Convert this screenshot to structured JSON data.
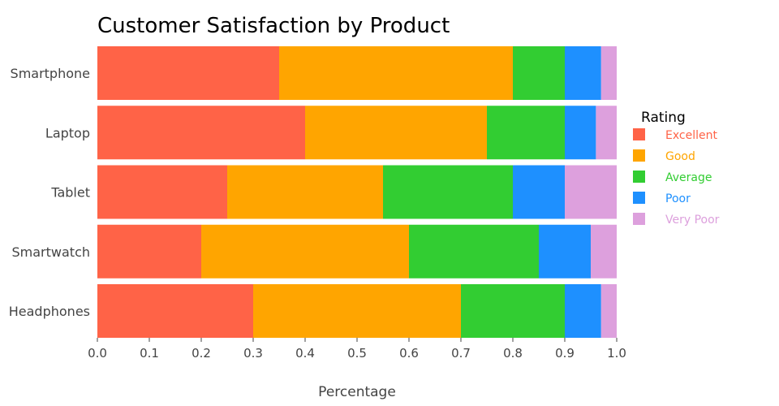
{
  "chart_data": {
    "type": "bar",
    "orientation": "horizontal",
    "stacked": true,
    "title": "Customer Satisfaction by Product",
    "xlabel": "Percentage",
    "ylabel": "",
    "xlim": [
      0,
      1
    ],
    "xticks": [
      "0.0",
      "0.1",
      "0.2",
      "0.3",
      "0.4",
      "0.5",
      "0.6",
      "0.7",
      "0.8",
      "0.9",
      "1.0"
    ],
    "grid": false,
    "categories": [
      "Smartphone",
      "Laptop",
      "Tablet",
      "Smartwatch",
      "Headphones"
    ],
    "series": [
      {
        "name": "Excellent",
        "color": "#ff6347",
        "values": [
          0.35,
          0.4,
          0.25,
          0.2,
          0.3
        ]
      },
      {
        "name": "Good",
        "color": "#ffa500",
        "values": [
          0.45,
          0.35,
          0.3,
          0.4,
          0.4
        ]
      },
      {
        "name": "Average",
        "color": "#32cd32",
        "values": [
          0.1,
          0.15,
          0.25,
          0.25,
          0.2
        ]
      },
      {
        "name": "Poor",
        "color": "#1e90ff",
        "values": [
          0.07,
          0.06,
          0.1,
          0.1,
          0.07
        ]
      },
      {
        "name": "Very Poor",
        "color": "#dda0dd",
        "values": [
          0.03,
          0.04,
          0.1,
          0.05,
          0.03
        ]
      }
    ],
    "legend": {
      "title": "Rating",
      "position": "right"
    }
  }
}
